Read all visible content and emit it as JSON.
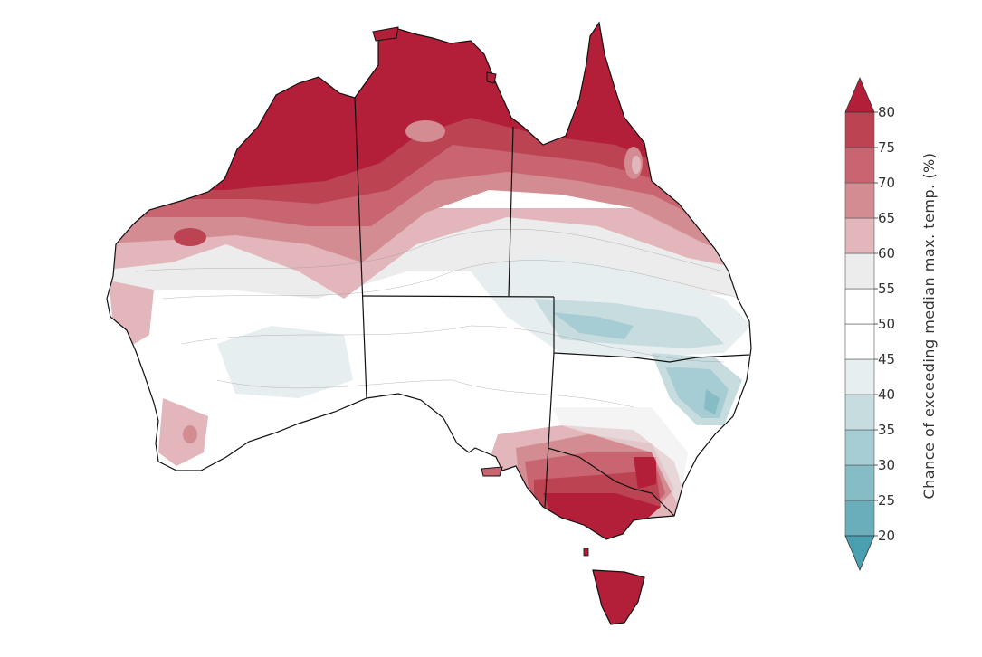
{
  "map": {
    "name": "australia",
    "regions": [
      "western-australia",
      "northern-territory",
      "queensland",
      "south-australia",
      "new-south-wales",
      "victoria",
      "tasmania"
    ]
  },
  "colorbar": {
    "title": "Chance of exceeding median max. temp. (%)",
    "ticks": [
      "20",
      "25",
      "30",
      "35",
      "40",
      "45",
      "50",
      "55",
      "60",
      "65",
      "70",
      "75",
      "80"
    ],
    "bins": [
      {
        "range": [
          20,
          25
        ],
        "color": "#6aaebb"
      },
      {
        "range": [
          25,
          30
        ],
        "color": "#86bcc6"
      },
      {
        "range": [
          30,
          35
        ],
        "color": "#a6cdd3"
      },
      {
        "range": [
          35,
          40
        ],
        "color": "#c6dcdf"
      },
      {
        "range": [
          40,
          45
        ],
        "color": "#e6eef0"
      },
      {
        "range": [
          45,
          50
        ],
        "color": "#ffffff"
      },
      {
        "range": [
          50,
          55
        ],
        "color": "#ffffff"
      },
      {
        "range": [
          55,
          60
        ],
        "color": "#ececec"
      },
      {
        "range": [
          60,
          65
        ],
        "color": "#e2b6ba"
      },
      {
        "range": [
          65,
          70
        ],
        "color": "#d48c93"
      },
      {
        "range": [
          70,
          75
        ],
        "color": "#c96471"
      },
      {
        "range": [
          75,
          80
        ],
        "color": "#bb4352"
      }
    ],
    "below_color": "#4a9fb0",
    "above_color": "#b31f38"
  },
  "colors": {
    "hot": "#b31f38",
    "cool": "#6aaebb",
    "border": "#111111"
  }
}
